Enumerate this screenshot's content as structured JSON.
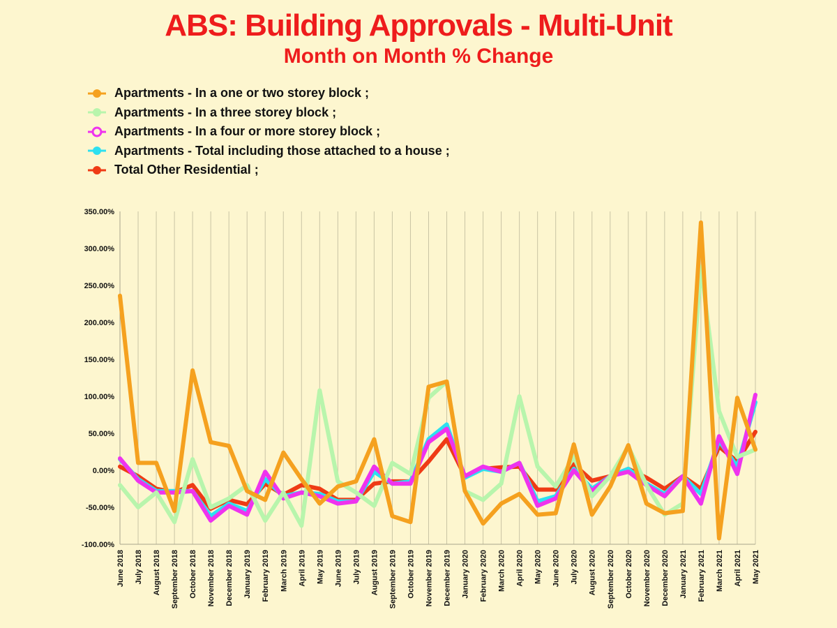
{
  "chart_data": {
    "type": "line",
    "title": "ABS: Building Approvals - Multi-Unit",
    "subtitle": "Month on Month % Change",
    "legend_position": "top-left",
    "grid": "vertical",
    "ylim": [
      -100,
      350
    ],
    "y_ticks": [
      "-100.00%",
      "-50.00%",
      "0.00%",
      "50.00%",
      "100.00%",
      "150.00%",
      "200.00%",
      "250.00%",
      "300.00%",
      "350.00%"
    ],
    "y_tick_values": [
      -100,
      -50,
      0,
      50,
      100,
      150,
      200,
      250,
      300,
      350
    ],
    "categories": [
      "June 2018",
      "July 2018",
      "August 2018",
      "September 2018",
      "October 2018",
      "November 2018",
      "December 2018",
      "January 2019",
      "February 2019",
      "March 2019",
      "April 2019",
      "May 2019",
      "June 2019",
      "July 2019",
      "August 2019",
      "September 2019",
      "October 2019",
      "November 2019",
      "December 2019",
      "January 2020",
      "February 2020",
      "March 2020",
      "April 2020",
      "May 2020",
      "June 2020",
      "July 2020",
      "August 2020",
      "September 2020",
      "October 2020",
      "November 2020",
      "December 2020",
      "January 2021",
      "February 2021",
      "March 2021",
      "April 2021",
      "May 2021"
    ],
    "series": [
      {
        "name": "Total Other Residential ;",
        "color": "#ef3b15",
        "marker": "filled",
        "values": [
          5,
          -8,
          -25,
          -30,
          -20,
          -52,
          -40,
          -46,
          -18,
          -33,
          -20,
          -25,
          -40,
          -40,
          -18,
          -15,
          -15,
          12,
          42,
          -8,
          2,
          4,
          5,
          -26,
          -26,
          8,
          -14,
          -8,
          2,
          -10,
          -25,
          -8,
          -25,
          32,
          12,
          52
        ]
      },
      {
        "name": "Apartments - Total including those attached to a house ;",
        "color": "#2de0f0",
        "marker": "filled",
        "values": [
          15,
          -12,
          -28,
          -28,
          -28,
          -62,
          -45,
          -55,
          -12,
          -35,
          -30,
          -32,
          -42,
          -42,
          -2,
          -18,
          -15,
          42,
          62,
          -10,
          2,
          -2,
          10,
          -42,
          -35,
          2,
          -25,
          -8,
          2,
          -18,
          -32,
          -8,
          -32,
          40,
          5,
          92
        ]
      },
      {
        "name": "Apartments - In a four or more storey block ;",
        "color": "#ee33ee",
        "marker": "hollow",
        "values": [
          16,
          -14,
          -30,
          -30,
          -28,
          -68,
          -48,
          -60,
          -2,
          -38,
          -30,
          -35,
          -45,
          -42,
          5,
          -18,
          -18,
          38,
          56,
          -8,
          5,
          -2,
          10,
          -48,
          -38,
          0,
          -28,
          -8,
          -2,
          -20,
          -35,
          -8,
          -45,
          46,
          -5,
          102
        ]
      },
      {
        "name": "Apartments - In a three storey block ;",
        "color": "#b8f5ac",
        "marker": "filled",
        "values": [
          -20,
          -50,
          -30,
          -70,
          15,
          -50,
          -38,
          -20,
          -68,
          -30,
          -75,
          108,
          -15,
          -30,
          -48,
          10,
          -5,
          98,
          120,
          -28,
          -40,
          -18,
          100,
          5,
          -22,
          18,
          -35,
          -8,
          32,
          -20,
          -60,
          -45,
          275,
          80,
          18,
          28
        ]
      },
      {
        "name": "Apartments - In a one or two storey block ;",
        "color": "#f5a11f",
        "marker": "filled",
        "values": [
          236,
          10,
          10,
          -55,
          135,
          38,
          33,
          -28,
          -40,
          24,
          -12,
          -45,
          -22,
          -15,
          42,
          -62,
          -70,
          113,
          120,
          -28,
          -72,
          -45,
          -32,
          -60,
          -58,
          35,
          -60,
          -22,
          34,
          -45,
          -58,
          -55,
          335,
          -92,
          98,
          28
        ]
      }
    ]
  }
}
